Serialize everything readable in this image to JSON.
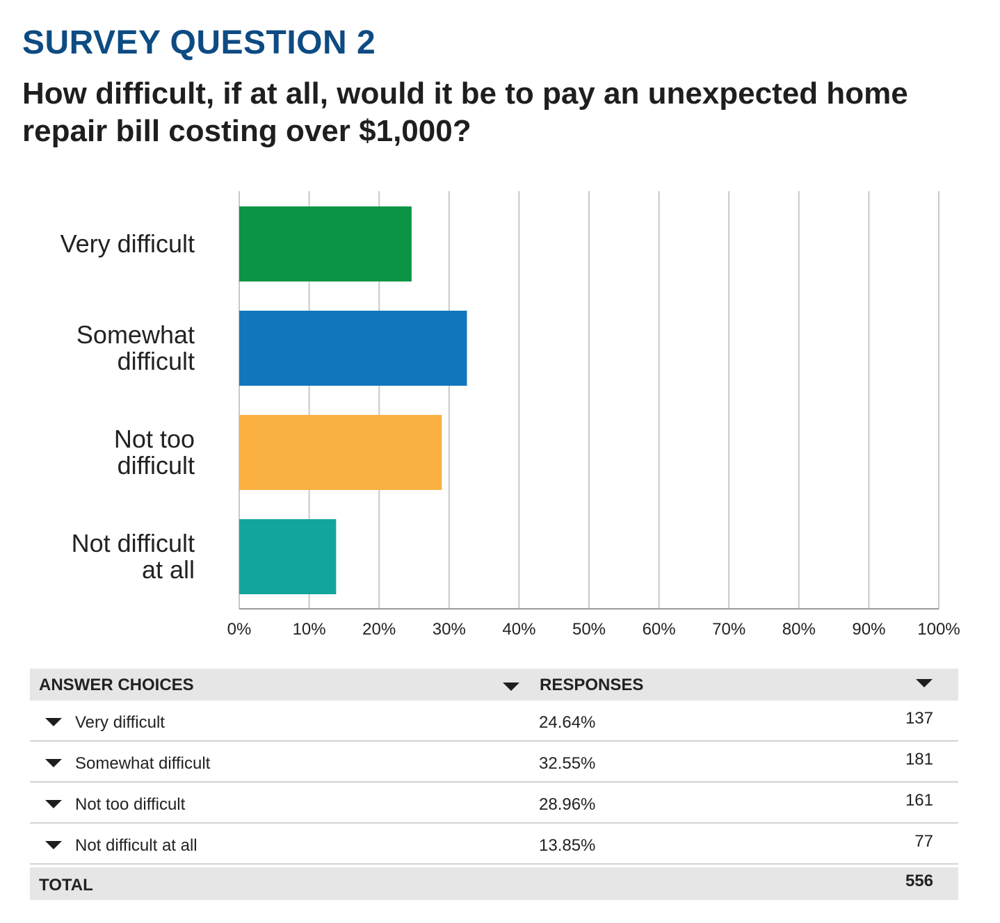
{
  "header": {
    "kicker": "SURVEY QUESTION 2",
    "question": "How difficult, if at all, would it be to pay an unexpected home repair bill costing over $1,000?"
  },
  "chart_data": {
    "type": "bar",
    "orientation": "horizontal",
    "categories": [
      [
        "Very difficult"
      ],
      [
        "Somewhat",
        "difficult"
      ],
      [
        "Not too",
        "difficult"
      ],
      [
        "Not difficult",
        "at all"
      ]
    ],
    "values": [
      24.64,
      32.55,
      28.96,
      13.85
    ],
    "colors": [
      "#0b9444",
      "#1277bd",
      "#fbb042",
      "#12a59e"
    ],
    "xlim": [
      0,
      100
    ],
    "xticks": [
      "0%",
      "10%",
      "20%",
      "30%",
      "40%",
      "50%",
      "60%",
      "70%",
      "80%",
      "90%",
      "100%"
    ],
    "grid": true,
    "legend": "none"
  },
  "table": {
    "headers": {
      "choices": "ANSWER CHOICES",
      "responses": "RESPONSES"
    },
    "rows": [
      {
        "choice": "Very difficult",
        "percent": "24.64%",
        "count": "137"
      },
      {
        "choice": "Somewhat difficult",
        "percent": "32.55%",
        "count": "181"
      },
      {
        "choice": "Not too difficult",
        "percent": "28.96%",
        "count": "161"
      },
      {
        "choice": "Not difficult at all",
        "percent": "13.85%",
        "count": "77"
      }
    ],
    "total_label": "TOTAL",
    "total_count": "556"
  }
}
